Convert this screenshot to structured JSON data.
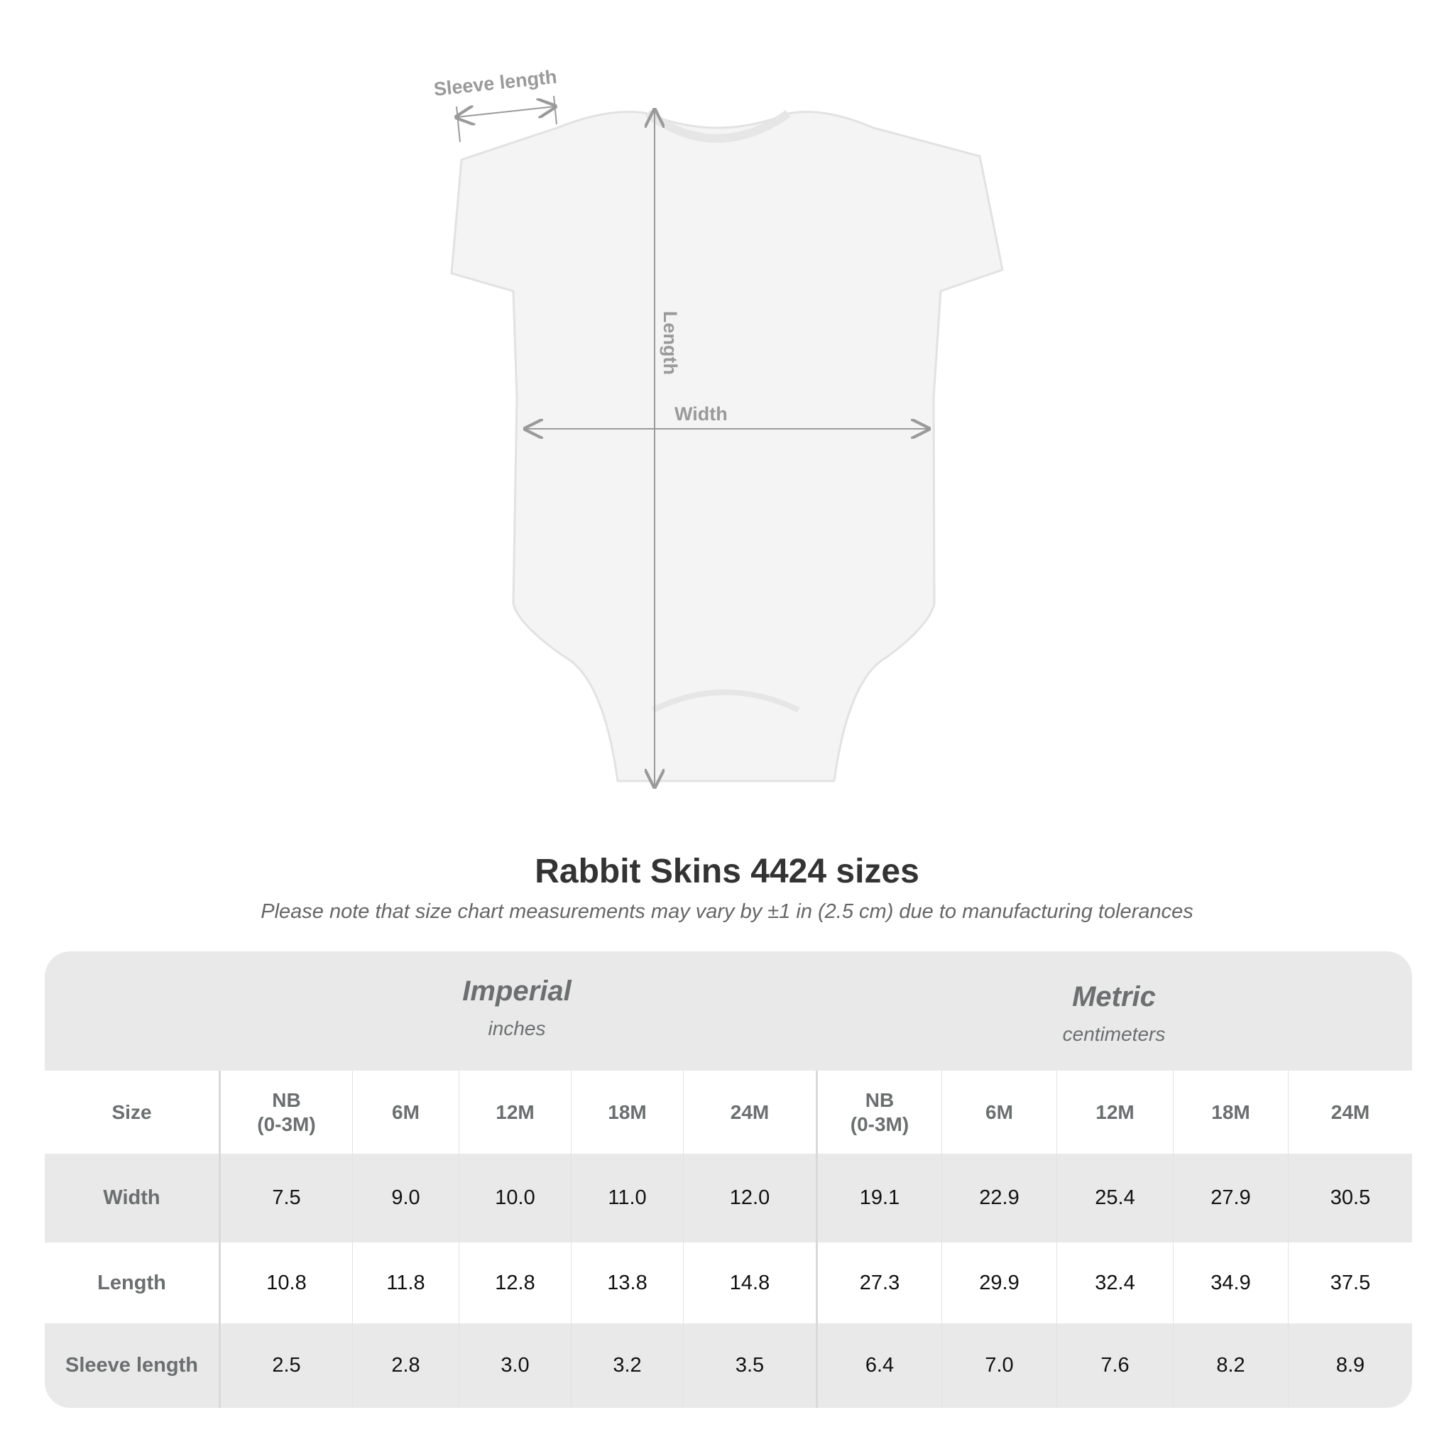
{
  "diagram": {
    "labels": {
      "sleeve": "Sleeve length",
      "length": "Length",
      "width": "Width"
    },
    "garment_color": "#f4f4f4",
    "measure_color": "#9a9a9a"
  },
  "title": "Rabbit Skins 4424 sizes",
  "subtitle": "Please note that size chart measurements may vary by ±1 in (2.5 cm) due to manufacturing tolerances",
  "table": {
    "imperial": {
      "name": "Imperial",
      "unit": "inches"
    },
    "metric": {
      "name": "Metric",
      "unit": "centimeters"
    },
    "size_label": "Size",
    "sizes": [
      "NB\n(0-3M)",
      "6M",
      "12M",
      "18M",
      "24M"
    ],
    "rows": [
      {
        "label": "Width",
        "imperial": [
          "7.5",
          "9.0",
          "10.0",
          "11.0",
          "12.0"
        ],
        "metric": [
          "19.1",
          "22.9",
          "25.4",
          "27.9",
          "30.5"
        ]
      },
      {
        "label": "Length",
        "imperial": [
          "10.8",
          "11.8",
          "12.8",
          "13.8",
          "14.8"
        ],
        "metric": [
          "27.3",
          "29.9",
          "32.4",
          "34.9",
          "37.5"
        ]
      },
      {
        "label": "Sleeve length",
        "imperial": [
          "2.5",
          "2.8",
          "3.0",
          "3.2",
          "3.5"
        ],
        "metric": [
          "6.4",
          "7.0",
          "7.6",
          "8.2",
          "8.9"
        ]
      }
    ]
  }
}
